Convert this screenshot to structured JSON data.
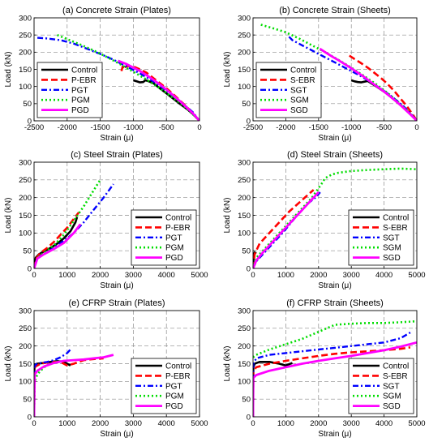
{
  "colors": {
    "Control": "#000000",
    "P-EBR": "#ff0000",
    "S-EBR": "#ff0000",
    "PGT": "#0000ff",
    "SGT": "#0000ff",
    "PGM": "#00dd00",
    "SGM": "#00dd00",
    "PGD": "#ff00ff",
    "SGD": "#ff00ff"
  },
  "chart_data": [
    {
      "type": "line",
      "title": "(a) Concrete Strain (Plates)",
      "xlabel": "Strain (μ)",
      "ylabel": "Load (kN)",
      "xlim": [
        -2500,
        0
      ],
      "ylim": [
        0,
        300
      ],
      "xticks": [
        "-2500",
        "-2000",
        "-1500",
        "-1000",
        "-500",
        "0"
      ],
      "yticks": [
        "0",
        "50",
        "100",
        "150",
        "200",
        "250",
        "300"
      ],
      "grid": true,
      "legend": "bottom-left",
      "series": [
        {
          "name": "Control",
          "x": [
            -1000,
            -950,
            -900,
            -850,
            -820,
            -780,
            -700,
            -600,
            -500,
            -400,
            -300,
            -200,
            -100,
            0
          ],
          "y": [
            118,
            115,
            112,
            113,
            118,
            116,
            110,
            95,
            80,
            65,
            50,
            36,
            20,
            0
          ]
        },
        {
          "name": "P-EBR",
          "x": [
            -1180,
            -1160,
            -1150,
            -1100,
            -1000,
            -900,
            -800,
            -700,
            -600,
            -500,
            -400,
            -300,
            -200,
            -100,
            0
          ],
          "y": [
            145,
            158,
            150,
            160,
            158,
            150,
            140,
            125,
            110,
            95,
            78,
            60,
            42,
            22,
            0
          ]
        },
        {
          "name": "PGT",
          "x": [
            -2450,
            -2300,
            -2100,
            -1900,
            -1700,
            -1500,
            -1300,
            -1100,
            -900,
            -700,
            -500,
            -300,
            -100,
            0
          ],
          "y": [
            242,
            240,
            235,
            225,
            210,
            195,
            178,
            158,
            138,
            115,
            88,
            58,
            25,
            0
          ]
        },
        {
          "name": "PGM",
          "x": [
            -2150,
            -2000,
            -1800,
            -1600,
            -1400,
            -1200,
            -1000,
            -800,
            -600,
            -400,
            -200,
            0
          ],
          "y": [
            250,
            238,
            222,
            205,
            186,
            165,
            143,
            120,
            95,
            67,
            37,
            0
          ]
        },
        {
          "name": "PGD",
          "x": [
            -1230,
            -1100,
            -1000,
            -900,
            -800,
            -700,
            -600,
            -500,
            -400,
            -300,
            -200,
            -100,
            0
          ],
          "y": [
            175,
            165,
            155,
            145,
            133,
            120,
            106,
            91,
            75,
            58,
            40,
            22,
            0
          ]
        }
      ]
    },
    {
      "type": "line",
      "title": "(b) Concrete Strain (Sheets)",
      "xlabel": "Strain (μ)",
      "ylabel": "Load (kN)",
      "xlim": [
        -2500,
        0
      ],
      "ylim": [
        0,
        300
      ],
      "xticks": [
        "-2500",
        "-2000",
        "-1500",
        "-1000",
        "-500",
        "0"
      ],
      "yticks": [
        "0",
        "50",
        "100",
        "150",
        "200",
        "250",
        "300"
      ],
      "grid": true,
      "legend": "bottom-left",
      "series": [
        {
          "name": "Control",
          "x": [
            -1000,
            -950,
            -900,
            -850,
            -800,
            -750,
            -700,
            -600,
            -500,
            -400,
            -300,
            -200,
            -100,
            0
          ],
          "y": [
            118,
            115,
            113,
            112,
            114,
            116,
            110,
            98,
            85,
            70,
            54,
            38,
            20,
            0
          ]
        },
        {
          "name": "S-EBR",
          "x": [
            -1030,
            -950,
            -850,
            -750,
            -650,
            -550,
            -450,
            -350,
            -250,
            -150,
            -50,
            0
          ],
          "y": [
            190,
            180,
            168,
            155,
            140,
            125,
            108,
            88,
            65,
            42,
            15,
            0
          ]
        },
        {
          "name": "SGT",
          "x": [
            -1950,
            -1900,
            -1800,
            -1700,
            -1600,
            -1500,
            -1400,
            -1300,
            -1200,
            -1100,
            -1000,
            -900,
            -800,
            -700,
            -600,
            -500,
            -400,
            -300,
            -200,
            -100,
            0
          ],
          "y": [
            245,
            235,
            225,
            215,
            205,
            195,
            185,
            175,
            165,
            155,
            145,
            135,
            124,
            112,
            100,
            87,
            73,
            58,
            42,
            22,
            0
          ]
        },
        {
          "name": "SGM",
          "x": [
            -2380,
            -2200,
            -2000,
            -1800,
            -1600,
            -1400,
            -1200,
            -1000,
            -800,
            -600,
            -400,
            -200,
            0
          ],
          "y": [
            280,
            270,
            258,
            240,
            220,
            200,
            178,
            155,
            130,
            104,
            74,
            40,
            0
          ]
        },
        {
          "name": "SGD",
          "x": [
            -1480,
            -1400,
            -1300,
            -1200,
            -1100,
            -1000,
            -900,
            -800,
            -700,
            -600,
            -500,
            -400,
            -300,
            -200,
            -100,
            0
          ],
          "y": [
            210,
            200,
            188,
            177,
            165,
            153,
            140,
            127,
            113,
            99,
            85,
            70,
            54,
            37,
            19,
            0
          ]
        }
      ]
    },
    {
      "type": "line",
      "title": "(c) Steel Strain (Plates)",
      "xlabel": "Strain (μ)",
      "ylabel": "Load (kN)",
      "xlim": [
        0,
        5000
      ],
      "ylim": [
        0,
        300
      ],
      "xticks": [
        "0",
        "1000",
        "2000",
        "3000",
        "4000",
        "5000"
      ],
      "yticks": [
        "0",
        "50",
        "100",
        "150",
        "200",
        "250",
        "300"
      ],
      "grid": true,
      "legend": "bottom-right",
      "series": [
        {
          "name": "Control",
          "x": [
            0,
            50,
            150,
            300,
            500,
            700,
            900,
            1100,
            1250,
            1300
          ],
          "y": [
            0,
            30,
            40,
            48,
            58,
            70,
            85,
            105,
            130,
            145
          ]
        },
        {
          "name": "P-EBR",
          "x": [
            0,
            80,
            200,
            400,
            600,
            800,
            1000,
            1200,
            1350
          ],
          "y": [
            0,
            30,
            45,
            58,
            75,
            95,
            115,
            140,
            158
          ]
        },
        {
          "name": "PGT",
          "x": [
            0,
            100,
            300,
            600,
            900,
            1200,
            1500,
            1800,
            2100,
            2400
          ],
          "y": [
            0,
            30,
            42,
            58,
            78,
            100,
            130,
            165,
            200,
            238
          ]
        },
        {
          "name": "PGM",
          "x": [
            0,
            100,
            300,
            600,
            900,
            1200,
            1500,
            1800,
            2000
          ],
          "y": [
            0,
            30,
            45,
            65,
            95,
            135,
            175,
            220,
            250
          ]
        },
        {
          "name": "PGD",
          "x": [
            0,
            100,
            300,
            600,
            900,
            1200,
            1400
          ],
          "y": [
            0,
            28,
            40,
            55,
            72,
            100,
            125
          ]
        }
      ]
    },
    {
      "type": "line",
      "title": "(d) Steel Strain (Sheets)",
      "xlabel": "Strain (μ)",
      "ylabel": "Load (kN)",
      "xlim": [
        0,
        5000
      ],
      "ylim": [
        0,
        300
      ],
      "xticks": [
        "0",
        "1000",
        "2000",
        "3000",
        "4000",
        "5000"
      ],
      "yticks": [
        "0",
        "50",
        "100",
        "150",
        "200",
        "250",
        "300"
      ],
      "grid": true,
      "legend": "bottom-right",
      "series": [
        {
          "name": "Control",
          "x": [
            0,
            20,
            50,
            100
          ],
          "y": [
            0,
            40,
            45,
            42
          ]
        },
        {
          "name": "S-EBR",
          "x": [
            0,
            50,
            200,
            500,
            800,
            1100,
            1400,
            1700,
            1850
          ],
          "y": [
            0,
            40,
            70,
            100,
            130,
            160,
            185,
            210,
            222
          ]
        },
        {
          "name": "SGT",
          "x": [
            0,
            100,
            300,
            500,
            700,
            900,
            1100,
            1300,
            1500,
            1700,
            1900,
            2050
          ],
          "y": [
            0,
            20,
            40,
            60,
            80,
            100,
            122,
            145,
            165,
            185,
            200,
            215
          ]
        },
        {
          "name": "SGM",
          "x": [
            0,
            100,
            300,
            600,
            900,
            1200,
            1500,
            1800,
            2100,
            2200,
            2400,
            2600,
            3000,
            3500,
            4000,
            4500,
            5000
          ],
          "y": [
            0,
            30,
            50,
            80,
            110,
            140,
            170,
            200,
            240,
            255,
            265,
            270,
            275,
            278,
            280,
            282,
            280
          ]
        },
        {
          "name": "SGD",
          "x": [
            0,
            100,
            300,
            600,
            900,
            1200,
            1500,
            1800,
            2000
          ],
          "y": [
            0,
            22,
            45,
            75,
            105,
            135,
            165,
            195,
            215
          ]
        }
      ]
    },
    {
      "type": "line",
      "title": "(e) CFRP Strain (Plates)",
      "xlabel": "Strain (μ)",
      "ylabel": "Load (kN)",
      "xlim": [
        0,
        5000
      ],
      "ylim": [
        0,
        300
      ],
      "xticks": [
        "0",
        "1000",
        "2000",
        "3000",
        "4000",
        "5000"
      ],
      "yticks": [
        "0",
        "50",
        "100",
        "150",
        "200",
        "250",
        "300"
      ],
      "grid": true,
      "legend": "bottom-right",
      "series": [
        {
          "name": "Control",
          "x": [
            0,
            10,
            30,
            100,
            300,
            500,
            700,
            900,
            1000,
            1100
          ],
          "y": [
            0,
            140,
            148,
            150,
            152,
            155,
            157,
            156,
            150,
            145
          ]
        },
        {
          "name": "P-EBR",
          "x": [
            0,
            10,
            40,
            200,
            500,
            800,
            1000,
            1200,
            1500,
            1800,
            2100
          ],
          "y": [
            0,
            135,
            142,
            150,
            155,
            155,
            145,
            150,
            160,
            163,
            165
          ]
        },
        {
          "name": "PGT",
          "x": [
            0,
            10,
            50,
            200,
            400,
            600,
            800,
            1000,
            1100
          ],
          "y": [
            0,
            140,
            148,
            152,
            155,
            160,
            168,
            180,
            190
          ]
        },
        {
          "name": "PGM",
          "x": [
            0,
            20,
            100,
            300,
            500,
            700,
            900
          ],
          "y": [
            0,
            100,
            120,
            140,
            150,
            155,
            158
          ]
        },
        {
          "name": "PGD",
          "x": [
            0,
            20,
            100,
            300,
            600,
            900,
            1200,
            1500,
            1800,
            2100,
            2400
          ],
          "y": [
            0,
            120,
            130,
            142,
            152,
            158,
            160,
            162,
            165,
            168,
            175
          ]
        }
      ]
    },
    {
      "type": "line",
      "title": "(f) CFRP Strain (Sheets)",
      "xlabel": "Strain (μ)",
      "ylabel": "Load (kN)",
      "xlim": [
        0,
        5000
      ],
      "ylim": [
        0,
        300
      ],
      "xticks": [
        "0",
        "1000",
        "2000",
        "3000",
        "4000",
        "5000"
      ],
      "yticks": [
        "0",
        "50",
        "100",
        "150",
        "200",
        "250",
        "300"
      ],
      "grid": true,
      "legend": "bottom-right",
      "series": [
        {
          "name": "Control",
          "x": [
            0,
            10,
            50,
            200,
            500,
            800,
            1000,
            1200
          ],
          "y": [
            0,
            140,
            150,
            155,
            155,
            150,
            145,
            152
          ]
        },
        {
          "name": "S-EBR",
          "x": [
            0,
            10,
            100,
            500,
            1000,
            1500,
            2000,
            2500,
            3000,
            3500,
            4000,
            4500,
            4800
          ],
          "y": [
            0,
            130,
            140,
            150,
            158,
            165,
            172,
            178,
            182,
            185,
            188,
            192,
            196
          ]
        },
        {
          "name": "SGT",
          "x": [
            0,
            10,
            100,
            500,
            1000,
            1500,
            2000,
            2500,
            3000,
            3500,
            4000,
            4500,
            4800
          ],
          "y": [
            0,
            150,
            165,
            175,
            180,
            185,
            190,
            195,
            200,
            205,
            210,
            222,
            238
          ]
        },
        {
          "name": "SGM",
          "x": [
            0,
            100,
            500,
            1000,
            1500,
            2000,
            2300,
            2500,
            3000,
            3500,
            4000,
            4500,
            5000
          ],
          "y": [
            168,
            175,
            190,
            205,
            220,
            240,
            252,
            260,
            263,
            265,
            265,
            267,
            270
          ]
        },
        {
          "name": "SGD",
          "x": [
            0,
            10,
            100,
            500,
            1000,
            1500,
            2000,
            2500,
            3000,
            3500,
            4000,
            4500,
            5000
          ],
          "y": [
            0,
            110,
            118,
            130,
            140,
            150,
            158,
            165,
            172,
            180,
            188,
            198,
            210
          ]
        }
      ]
    }
  ]
}
